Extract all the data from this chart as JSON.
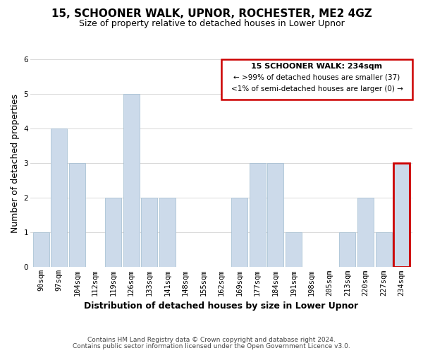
{
  "title": "15, SCHOONER WALK, UPNOR, ROCHESTER, ME2 4GZ",
  "subtitle": "Size of property relative to detached houses in Lower Upnor",
  "xlabel": "Distribution of detached houses by size in Lower Upnor",
  "ylabel": "Number of detached properties",
  "bar_labels": [
    "90sqm",
    "97sqm",
    "104sqm",
    "112sqm",
    "119sqm",
    "126sqm",
    "133sqm",
    "141sqm",
    "148sqm",
    "155sqm",
    "162sqm",
    "169sqm",
    "177sqm",
    "184sqm",
    "191sqm",
    "198sqm",
    "205sqm",
    "213sqm",
    "220sqm",
    "227sqm",
    "234sqm"
  ],
  "bar_values": [
    1,
    4,
    3,
    0,
    2,
    5,
    2,
    2,
    0,
    0,
    0,
    2,
    3,
    3,
    1,
    0,
    0,
    1,
    2,
    1,
    3
  ],
  "highlight_index": 20,
  "bar_color_normal": "#ccdaea",
  "bar_edge_color": "#a0bcd0",
  "highlight_edge_color": "#cc0000",
  "highlight_edge_width": 2.0,
  "ylim": [
    0,
    6
  ],
  "yticks": [
    0,
    1,
    2,
    3,
    4,
    5,
    6
  ],
  "legend_title": "15 SCHOONER WALK: 234sqm",
  "legend_line1": "← >99% of detached houses are smaller (37)",
  "legend_line2": "<1% of semi-detached houses are larger (0) →",
  "legend_box_color": "#ffffff",
  "legend_box_edge": "#cc0000",
  "footer_line1": "Contains HM Land Registry data © Crown copyright and database right 2024.",
  "footer_line2": "Contains public sector information licensed under the Open Government Licence v3.0.",
  "background_color": "#ffffff",
  "grid_color": "#d8d8d8",
  "title_fontsize": 11,
  "subtitle_fontsize": 9,
  "axis_label_fontsize": 9,
  "tick_fontsize": 7.5,
  "legend_title_fontsize": 8,
  "legend_body_fontsize": 7.5,
  "footer_fontsize": 6.5
}
